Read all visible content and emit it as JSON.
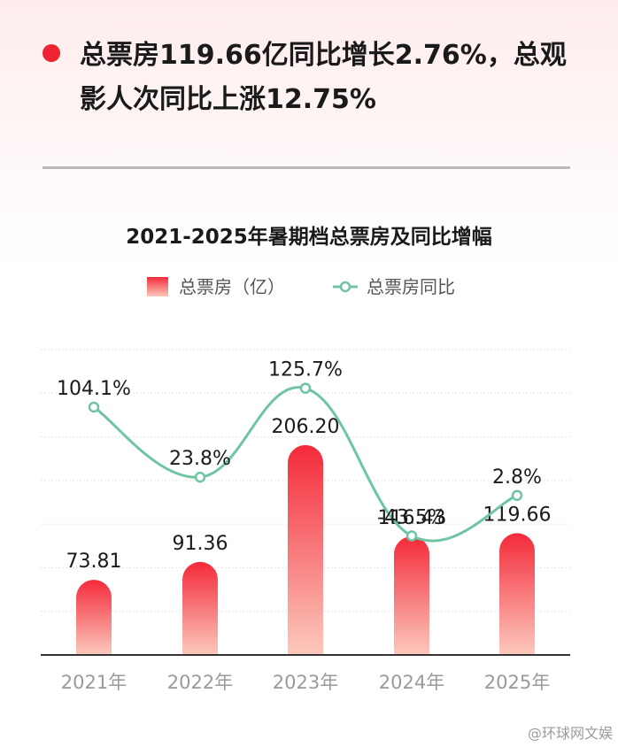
{
  "headline": "总票房119.66亿同比增长2.76%，总观影人次同比上涨12.75%",
  "watermark": "@环球网文娱",
  "colors": {
    "accent": "#ee2433",
    "bar_top": "#f42a3a",
    "bar_bottom": "#fcc9bd",
    "line": "#6fc4a1",
    "axis": "#333333",
    "tick_label": "#9a9a9a"
  },
  "chart_data": {
    "type": "bar+line",
    "title": "2021-2025年暑期档总票房及同比增幅",
    "categories": [
      "2021年",
      "2022年",
      "2023年",
      "2024年",
      "2025年"
    ],
    "series": [
      {
        "name": "总票房（亿）",
        "type": "bar",
        "values": [
          73.81,
          91.36,
          206.2,
          116.43,
          119.66
        ],
        "labels": [
          "73.81",
          "91.36",
          "206.20",
          "116.43",
          "119.66"
        ]
      },
      {
        "name": "总票房同比",
        "type": "line",
        "values": [
          104.1,
          23.8,
          125.7,
          -43.5,
          2.8
        ],
        "labels": [
          "104.1%",
          "23.8%",
          "125.7%",
          "-43.5%",
          "2.8%"
        ]
      }
    ],
    "bar_axis_range": [
      0,
      300
    ],
    "line_axis_range": [
      -180,
      170
    ],
    "grid": true,
    "legend_position": "top"
  }
}
